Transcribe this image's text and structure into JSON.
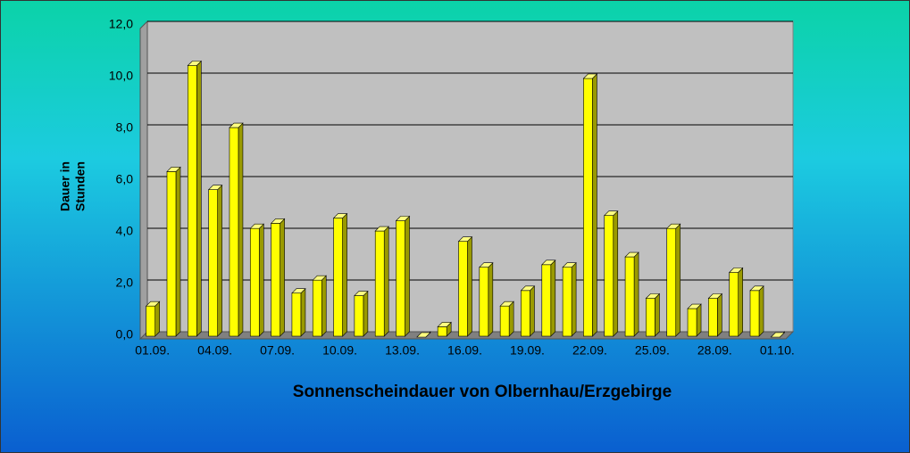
{
  "chart_data": {
    "type": "bar3d",
    "title": "Sonnenscheindauer von Olbernhau/Erzgebirge",
    "y_label": [
      "Dauer in",
      "Stunden"
    ],
    "categories": [
      "01.09.",
      null,
      null,
      "04.09.",
      null,
      null,
      "07.09.",
      null,
      null,
      "10.09.",
      null,
      null,
      "13.09.",
      null,
      null,
      "16.09.",
      null,
      null,
      "19.09.",
      null,
      null,
      "22.09.",
      null,
      null,
      "25.09.",
      null,
      null,
      "28.09.",
      null,
      null,
      "01.10."
    ],
    "values": [
      1.2,
      6.4,
      10.5,
      5.7,
      8.1,
      4.2,
      4.4,
      1.7,
      2.2,
      4.6,
      1.6,
      4.1,
      4.5,
      0,
      0.4,
      3.7,
      2.7,
      1.2,
      1.8,
      2.8,
      2.7,
      10.0,
      4.7,
      3.1,
      1.5,
      4.2,
      1.1,
      1.5,
      2.5,
      1.8,
      0
    ],
    "color": "#ffff00",
    "ylim": [
      0,
      12
    ],
    "yticks": [
      {
        "value": 0,
        "label": "0,0"
      },
      {
        "value": 2,
        "label": "2,0"
      },
      {
        "value": 4,
        "label": "4,0"
      },
      {
        "value": 6,
        "label": "6,0"
      },
      {
        "value": 8,
        "label": "8,0"
      },
      {
        "value": 10,
        "label": "10,0"
      },
      {
        "value": 12,
        "label": "12,0"
      }
    ],
    "grid": true
  }
}
